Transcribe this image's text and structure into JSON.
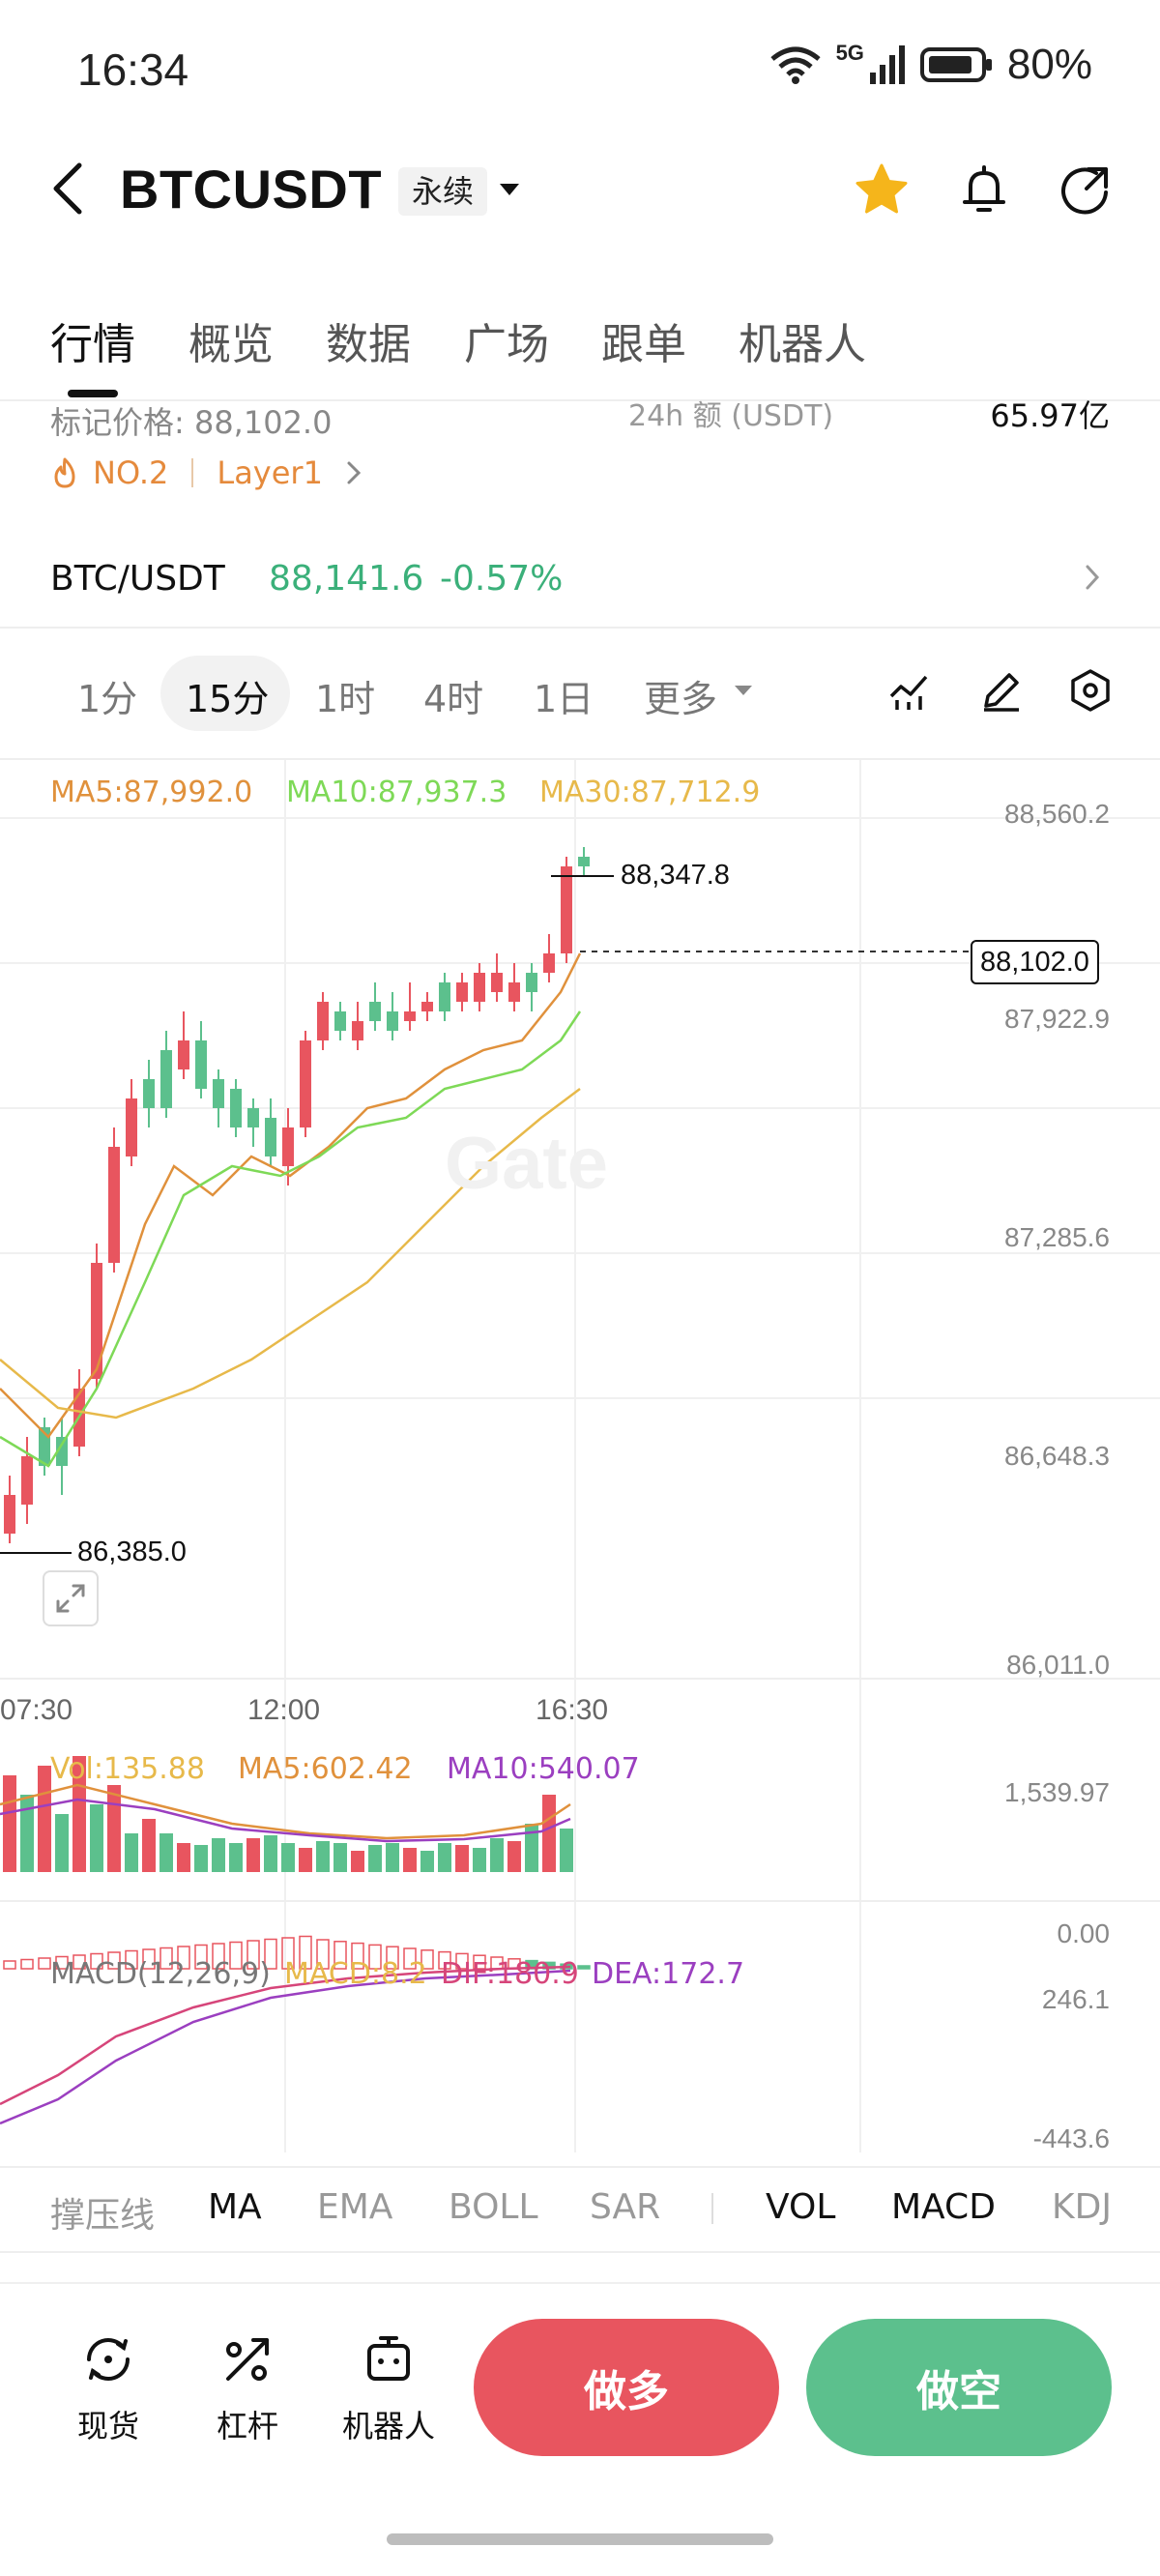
{
  "status": {
    "time": "16:34",
    "network": "5G",
    "battery": "80%"
  },
  "header": {
    "pair": "BTCUSDT",
    "contract_type": "永续"
  },
  "tabs": [
    {
      "label": "行情"
    },
    {
      "label": "概览"
    },
    {
      "label": "数据"
    },
    {
      "label": "广场"
    },
    {
      "label": "跟单"
    },
    {
      "label": "机器人"
    }
  ],
  "info": {
    "mark_price": "标记价格: 88,102.0",
    "vol_label": "24h 额 (USDT)",
    "vol_value": "65.97亿",
    "rank": "NO.2",
    "sector": "Layer1"
  },
  "spot": {
    "label": "BTC/USDT",
    "price": "88,141.6",
    "change": "-0.57%"
  },
  "timeframes": [
    {
      "label": "1分"
    },
    {
      "label": "15分"
    },
    {
      "label": "1时"
    },
    {
      "label": "4时"
    },
    {
      "label": "1日"
    },
    {
      "label": "更多"
    }
  ],
  "colors": {
    "up": "#e8555f",
    "down": "#5cc08d",
    "ma5": "#e0913c",
    "ma10": "#7ed957",
    "ma30": "#e7b94a",
    "dif": "#d6457a",
    "dea": "#9b3fc0"
  },
  "chart": {
    "ma_legend": {
      "ma5": "MA5:87,992.0",
      "ma10": "MA10:87,937.3",
      "ma30": "MA30:87,712.9"
    },
    "price_axis": [
      "88,560.2",
      "87,922.9",
      "87,285.6",
      "86,648.3",
      "86,011.0"
    ],
    "high_label": "88,347.8",
    "low_label": "86,385.0",
    "last_price_tag": "88,102.0",
    "time_axis": [
      "07:30",
      "12:00",
      "16:30"
    ],
    "watermark": "Gate"
  },
  "volume": {
    "legend": {
      "vol": "Vol:135.88",
      "ma5": "MA5:602.42",
      "ma10": "MA10:540.07"
    },
    "axis": [
      "1,539.97",
      "0.00"
    ]
  },
  "macd": {
    "legend": {
      "title": "MACD(12,26,9)",
      "macd": "MACD:8.2",
      "dif": "DIF:180.9",
      "dea": "DEA:172.7"
    },
    "axis": [
      "246.1",
      "-443.6"
    ]
  },
  "indicators": [
    {
      "label": "撑压线"
    },
    {
      "label": "MA"
    },
    {
      "label": "EMA"
    },
    {
      "label": "BOLL"
    },
    {
      "label": "SAR"
    },
    {
      "label": "VOL"
    },
    {
      "label": "MACD"
    },
    {
      "label": "KDJ"
    }
  ],
  "bottom_nav": [
    {
      "label": "现货",
      "icon": "spot-icon"
    },
    {
      "label": "杠杆",
      "icon": "leverage-icon"
    },
    {
      "label": "机器人",
      "icon": "robot-icon"
    }
  ],
  "actions": {
    "long": "做多",
    "short": "做空"
  }
}
